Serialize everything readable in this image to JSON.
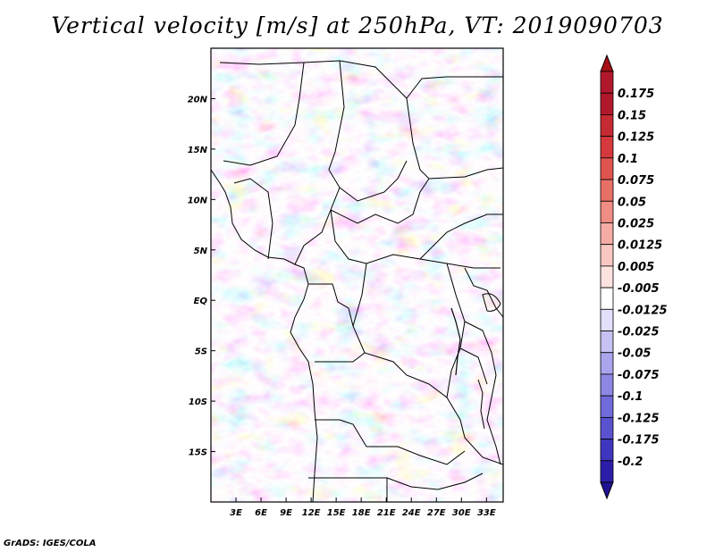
{
  "title": "Vertical velocity [m/s] at 250hPa, VT: 2019090703",
  "credit": "GrADS: IGES/COLA",
  "map": {
    "lon_range": [
      0,
      35
    ],
    "lat_range": [
      -20,
      25
    ],
    "x_ticks": [
      {
        "value": 3,
        "label": "3E"
      },
      {
        "value": 6,
        "label": "6E"
      },
      {
        "value": 9,
        "label": "9E"
      },
      {
        "value": 12,
        "label": "12E"
      },
      {
        "value": 15,
        "label": "15E"
      },
      {
        "value": 18,
        "label": "18E"
      },
      {
        "value": 21,
        "label": "21E"
      },
      {
        "value": 24,
        "label": "24E"
      },
      {
        "value": 27,
        "label": "27E"
      },
      {
        "value": 30,
        "label": "30E"
      },
      {
        "value": 33,
        "label": "33E"
      }
    ],
    "y_ticks": [
      {
        "value": 20,
        "label": "20N"
      },
      {
        "value": 15,
        "label": "15N"
      },
      {
        "value": 10,
        "label": "10N"
      },
      {
        "value": 5,
        "label": "5N"
      },
      {
        "value": 0,
        "label": "EQ"
      },
      {
        "value": -5,
        "label": "5S"
      },
      {
        "value": -10,
        "label": "10S"
      },
      {
        "value": -15,
        "label": "15S"
      }
    ]
  },
  "colorbar": {
    "levels": [
      {
        "label": "0.175",
        "color": "#b2182b"
      },
      {
        "label": "0.15",
        "color": "#c62a32"
      },
      {
        "label": "0.125",
        "color": "#d6393d"
      },
      {
        "label": "0.1",
        "color": "#e0544f"
      },
      {
        "label": "0.075",
        "color": "#e87067"
      },
      {
        "label": "0.05",
        "color": "#f08d84"
      },
      {
        "label": "0.025",
        "color": "#f5aca5"
      },
      {
        "label": "0.0125",
        "color": "#f9c8c3"
      },
      {
        "label": "0.005",
        "color": "#fde3e0"
      },
      {
        "label": "-0.005",
        "color": "#ffffff"
      },
      {
        "label": "-0.0125",
        "color": "#e2e0fa"
      },
      {
        "label": "-0.025",
        "color": "#c6c2f3"
      },
      {
        "label": "-0.05",
        "color": "#aaa5ec"
      },
      {
        "label": "-0.075",
        "color": "#8d88e4"
      },
      {
        "label": "-0.1",
        "color": "#716bdb"
      },
      {
        "label": "-0.125",
        "color": "#5a52cf"
      },
      {
        "label": "-0.175",
        "color": "#3f36bf"
      },
      {
        "label": "-0.2",
        "color": "#2c1ea8"
      }
    ],
    "top_color": "#a50f15",
    "bottom_color": "#1f1392"
  }
}
